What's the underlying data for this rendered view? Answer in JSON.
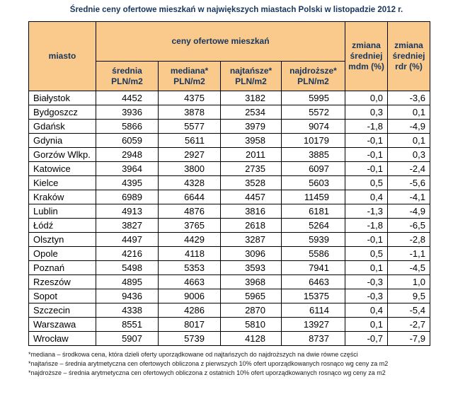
{
  "title": "Średnie ceny ofertowe mieszkań w największych miastach Polski w listopadzie 2012 r.",
  "table": {
    "header": {
      "city": "miasto",
      "group": "ceny ofertowe mieszkań",
      "sub": [
        {
          "name": "średnia",
          "unit": "PLN/m2"
        },
        {
          "name": "mediana*",
          "unit": "PLN/m2"
        },
        {
          "name": "najtańsze*",
          "unit": "PLN/m2"
        },
        {
          "name": "najdroższe*",
          "unit": "PLN/m2"
        }
      ],
      "change_mdm": "zmiana średniej mdm (%)",
      "change_rdr": "zmiana średniej rdr (%)"
    },
    "rows": [
      {
        "city": "Białystok",
        "avg": "4452",
        "median": "4375",
        "cheapest": "3182",
        "most_expensive": "5995",
        "mdm": "0,0",
        "rdr": "-3,6"
      },
      {
        "city": "Bydgoszcz",
        "avg": "3936",
        "median": "3878",
        "cheapest": "2534",
        "most_expensive": "5572",
        "mdm": "0,3",
        "rdr": "0,1"
      },
      {
        "city": "Gdańsk",
        "avg": "5866",
        "median": "5577",
        "cheapest": "3979",
        "most_expensive": "9074",
        "mdm": "-1,8",
        "rdr": "-4,9"
      },
      {
        "city": "Gdynia",
        "avg": "6059",
        "median": "5611",
        "cheapest": "3958",
        "most_expensive": "10179",
        "mdm": "-0,1",
        "rdr": "0,1"
      },
      {
        "city": "Gorzów Wlkp.",
        "avg": "2948",
        "median": "2927",
        "cheapest": "2011",
        "most_expensive": "3885",
        "mdm": "-0,1",
        "rdr": "0,3"
      },
      {
        "city": "Katowice",
        "avg": "3964",
        "median": "3800",
        "cheapest": "2735",
        "most_expensive": "6097",
        "mdm": "-0,1",
        "rdr": "-2,4"
      },
      {
        "city": "Kielce",
        "avg": "4395",
        "median": "4328",
        "cheapest": "3528",
        "most_expensive": "5603",
        "mdm": "0,5",
        "rdr": "-5,6"
      },
      {
        "city": "Kraków",
        "avg": "6989",
        "median": "6644",
        "cheapest": "4457",
        "most_expensive": "11459",
        "mdm": "0,4",
        "rdr": "-4,1"
      },
      {
        "city": "Lublin",
        "avg": "4913",
        "median": "4876",
        "cheapest": "3816",
        "most_expensive": "6181",
        "mdm": "-1,3",
        "rdr": "-4,9"
      },
      {
        "city": "Łódź",
        "avg": "3827",
        "median": "3765",
        "cheapest": "2618",
        "most_expensive": "5264",
        "mdm": "-1,8",
        "rdr": "-6,5"
      },
      {
        "city": "Olsztyn",
        "avg": "4497",
        "median": "4429",
        "cheapest": "3287",
        "most_expensive": "5939",
        "mdm": "-0,1",
        "rdr": "-2,8"
      },
      {
        "city": "Opole",
        "avg": "4216",
        "median": "4118",
        "cheapest": "3096",
        "most_expensive": "5586",
        "mdm": "0,5",
        "rdr": "-1,1"
      },
      {
        "city": "Poznań",
        "avg": "5498",
        "median": "5353",
        "cheapest": "3593",
        "most_expensive": "7941",
        "mdm": "0,1",
        "rdr": "-4,5"
      },
      {
        "city": "Rzeszów",
        "avg": "4895",
        "median": "4663",
        "cheapest": "3968",
        "most_expensive": "6463",
        "mdm": "-0,3",
        "rdr": "1,0"
      },
      {
        "city": "Sopot",
        "avg": "9436",
        "median": "9006",
        "cheapest": "5965",
        "most_expensive": "15375",
        "mdm": "-0,3",
        "rdr": "9,5"
      },
      {
        "city": "Szczecin",
        "avg": "4338",
        "median": "4286",
        "cheapest": "2870",
        "most_expensive": "6114",
        "mdm": "0,4",
        "rdr": "-5,4"
      },
      {
        "city": "Warszawa",
        "avg": "8551",
        "median": "8017",
        "cheapest": "5810",
        "most_expensive": "13927",
        "mdm": "0,1",
        "rdr": "-2,7"
      },
      {
        "city": "Wrocław",
        "avg": "5907",
        "median": "5739",
        "cheapest": "4128",
        "most_expensive": "8737",
        "mdm": "-0,7",
        "rdr": "-7,9"
      }
    ]
  },
  "footnotes": [
    "*mediana – środkowa cena, która dzieli oferty uporządkowane od najtańszych do najdroższych na dwie równe części",
    "*najtańsze – średnia arytmetyczna cen ofertowych obliczona z pierwszych 10% ofert uporządkowanych rosnąco wg ceny za  m2",
    "*najdroższe – średnia  arytmetyczna cen ofertowych obliczona z ostatnich 10% ofert uporządkowanych rosnąco wg ceny za m2"
  ]
}
